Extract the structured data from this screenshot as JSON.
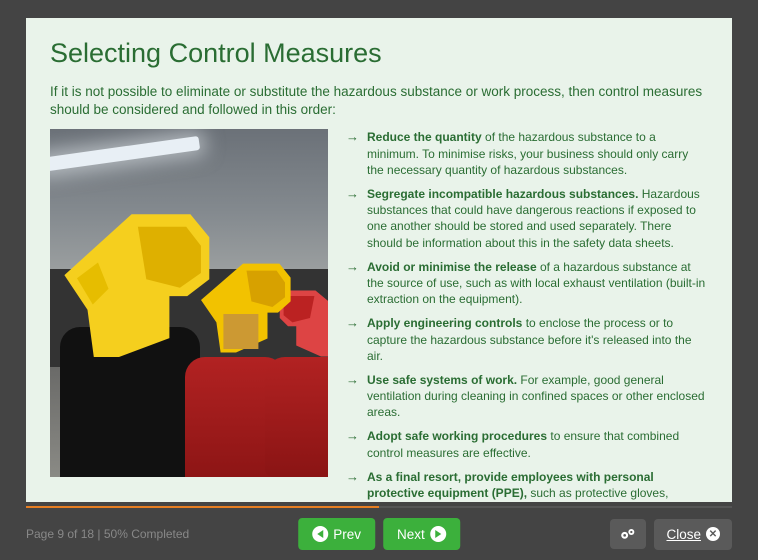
{
  "title": "Selecting Control Measures",
  "intro": "If it is not possible to eliminate or substitute the hazardous substance or work process, then control measures should be considered and followed in this order:",
  "bullets": [
    {
      "bold": "Reduce the quantity",
      "rest": " of the hazardous substance to a minimum. To minimise risks, your business should only carry the necessary quantity of hazardous substances."
    },
    {
      "bold": "Segregate incompatible hazardous substances.",
      "rest": " Hazardous substances that could have dangerous reactions if exposed to one another should be stored and used separately. There should be information about this in the safety data sheets."
    },
    {
      "bold": "Avoid or minimise the release",
      "rest": " of a hazardous substance at the source of use, such as with local exhaust ventilation (built-in extraction on the equipment)."
    },
    {
      "bold": "Apply engineering controls",
      "rest": " to enclose the process or to capture the hazardous substance before it's released into the air."
    },
    {
      "bold": "Use safe systems of work.",
      "rest": " For example, good general ventilation during cleaning in confined spaces or other enclosed areas."
    },
    {
      "bold": "Adopt safe working procedures",
      "rest": " to ensure that combined control measures are effective."
    },
    {
      "bold": "As a final resort, provide employees with personal protective equipment (PPE),",
      "rest": " such as protective gloves, aprons, or respiratory protective equipment (RPE). PPE should only be used in combination with one or more of the above and after all other measures have been considered."
    }
  ],
  "footer": {
    "page_status": "Page 9 of 18 | 50% Completed",
    "progress_percent": 50,
    "prev_label": "Prev",
    "next_label": "Next",
    "close_label": "Close"
  },
  "colors": {
    "page_bg": "#444444",
    "content_bg": "#e9f3ea",
    "text_green": "#2a6d33",
    "btn_green": "#3cb03c",
    "btn_dark": "#5a5a5a",
    "progress_bg": "#555555",
    "progress_fill": "#e67e22"
  }
}
